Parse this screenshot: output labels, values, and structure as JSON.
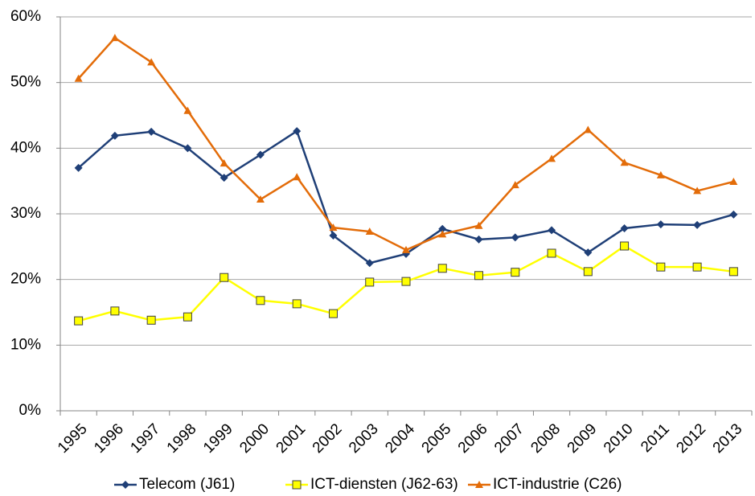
{
  "chart_data": {
    "type": "line",
    "categories": [
      "1995",
      "1996",
      "1997",
      "1998",
      "1999",
      "2000",
      "2001",
      "2002",
      "2003",
      "2004",
      "2005",
      "2006",
      "2007",
      "2008",
      "2009",
      "2010",
      "2011",
      "2012",
      "2013"
    ],
    "series": [
      {
        "name": "Telecom (J61)",
        "color": "#1f3f77",
        "marker": "diamond",
        "values": [
          37.0,
          41.9,
          42.5,
          40.0,
          35.5,
          39.0,
          42.6,
          26.7,
          22.5,
          23.9,
          27.7,
          26.1,
          26.4,
          27.5,
          24.1,
          27.8,
          28.4,
          28.3,
          29.9
        ]
      },
      {
        "name": "ICT-diensten (J62-63)",
        "color": "#ffff00",
        "marker": "square",
        "values": [
          13.7,
          15.2,
          13.8,
          14.3,
          20.3,
          16.8,
          16.3,
          14.8,
          19.6,
          19.7,
          21.7,
          20.6,
          21.1,
          24.0,
          21.2,
          25.1,
          21.9,
          21.9,
          21.2
        ]
      },
      {
        "name": "ICT-industrie (C26)",
        "color": "#e36c09",
        "marker": "triangle",
        "values": [
          50.6,
          56.8,
          53.1,
          45.7,
          37.7,
          32.2,
          35.6,
          27.9,
          27.3,
          24.5,
          26.9,
          28.2,
          34.4,
          38.4,
          42.8,
          37.8,
          35.9,
          33.5,
          34.9
        ]
      }
    ],
    "ylim": [
      0,
      60
    ],
    "yticks": [
      {
        "value": 0,
        "label": "0%"
      },
      {
        "value": 10,
        "label": "10%"
      },
      {
        "value": 20,
        "label": "20%"
      },
      {
        "value": 30,
        "label": "30%"
      },
      {
        "value": 40,
        "label": "40%"
      },
      {
        "value": 50,
        "label": "50%"
      },
      {
        "value": 60,
        "label": "60%"
      }
    ],
    "grid": true,
    "legend": "bottom"
  }
}
